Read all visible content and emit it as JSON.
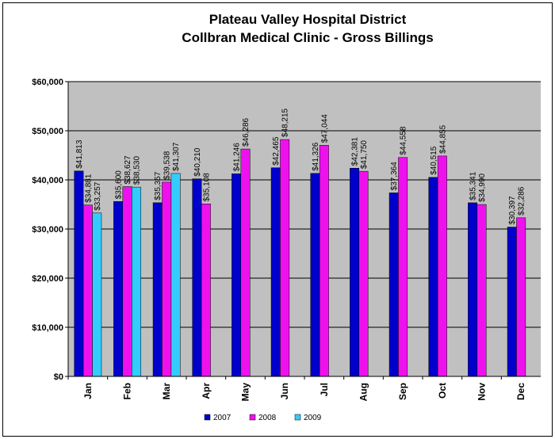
{
  "chart_data": {
    "type": "bar",
    "title": "Plateau Valley Hospital District",
    "subtitle": "Collbran Medical Clinic - Gross Billings",
    "categories": [
      "Jan",
      "Feb",
      "Mar",
      "Apr",
      "May",
      "Jun",
      "Jul",
      "Aug",
      "Sep",
      "Oct",
      "Nov",
      "Dec"
    ],
    "series": [
      {
        "name": "2007",
        "color": "#0000cc",
        "values": [
          41813,
          35600,
          35357,
          40210,
          41246,
          42465,
          41326,
          42381,
          37364,
          40515,
          35341,
          30397
        ],
        "value_labels": [
          "$41,813",
          "$35,600",
          "$35,357",
          "$40,210",
          "$41,246",
          "$42,465",
          "$41,326",
          "$42,381",
          "$37,364",
          "$40,515",
          "$35,341",
          "$30,397"
        ]
      },
      {
        "name": "2008",
        "color": "#ee11ee",
        "values": [
          34881,
          38627,
          39538,
          35108,
          46286,
          48215,
          47044,
          41750,
          44558,
          44855,
          34990,
          32286
        ],
        "value_labels": [
          "$34,881",
          "$38,627",
          "$39,538",
          "$35,108",
          "$46,286",
          "$48,215",
          "$47,044",
          "$41,750",
          "$44,558",
          "$44,855",
          "$34,990",
          "$32,286"
        ]
      },
      {
        "name": "2009",
        "color": "#33ccff",
        "values": [
          33257,
          38530,
          41307,
          null,
          null,
          null,
          null,
          null,
          null,
          null,
          null,
          null
        ],
        "value_labels": [
          "$33,257",
          "$38,530",
          "$41,307",
          null,
          null,
          null,
          null,
          null,
          null,
          null,
          null,
          null
        ]
      }
    ],
    "ylim": [
      0,
      60000
    ],
    "yticks": [
      {
        "value": 0,
        "label": "$0"
      },
      {
        "value": 10000,
        "label": "$10,000"
      },
      {
        "value": 20000,
        "label": "$20,000"
      },
      {
        "value": 30000,
        "label": "$30,000"
      },
      {
        "value": 40000,
        "label": "$40,000"
      },
      {
        "value": 50000,
        "label": "$50,000"
      },
      {
        "value": 60000,
        "label": "$60,000"
      }
    ],
    "grid": true
  }
}
